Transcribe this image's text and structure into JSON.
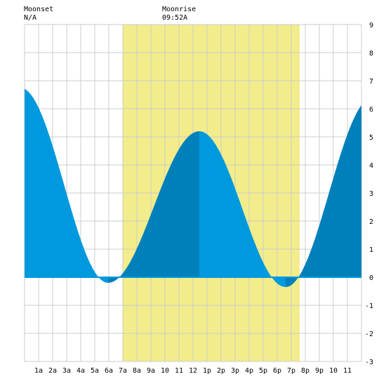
{
  "header": {
    "moonset_label": "Moonset",
    "moonset_time": "N/A",
    "moonrise_label": "Moonrise",
    "moonrise_time": "09:52A"
  },
  "chart_data": {
    "type": "area",
    "title": "",
    "xlabel": "",
    "ylabel": "",
    "x_unit": "hours",
    "xlim": [
      0,
      24
    ],
    "ylim": [
      -3,
      9
    ],
    "x_ticks": [
      {
        "x": 1,
        "label": "1a"
      },
      {
        "x": 2,
        "label": "2a"
      },
      {
        "x": 3,
        "label": "3a"
      },
      {
        "x": 4,
        "label": "4a"
      },
      {
        "x": 5,
        "label": "5a"
      },
      {
        "x": 6,
        "label": "6a"
      },
      {
        "x": 7,
        "label": "7a"
      },
      {
        "x": 8,
        "label": "8a"
      },
      {
        "x": 9,
        "label": "9a"
      },
      {
        "x": 10,
        "label": "10"
      },
      {
        "x": 11,
        "label": "11"
      },
      {
        "x": 12,
        "label": "12"
      },
      {
        "x": 13,
        "label": "1p"
      },
      {
        "x": 14,
        "label": "2p"
      },
      {
        "x": 15,
        "label": "3p"
      },
      {
        "x": 16,
        "label": "4p"
      },
      {
        "x": 17,
        "label": "5p"
      },
      {
        "x": 18,
        "label": "6p"
      },
      {
        "x": 19,
        "label": "7p"
      },
      {
        "x": 20,
        "label": "8p"
      },
      {
        "x": 21,
        "label": "9p"
      },
      {
        "x": 22,
        "label": "10"
      },
      {
        "x": 23,
        "label": "11"
      }
    ],
    "y_ticks": [
      {
        "y": 9,
        "label": "9"
      },
      {
        "y": 8,
        "label": "8"
      },
      {
        "y": 7,
        "label": "7"
      },
      {
        "y": 6,
        "label": "6"
      },
      {
        "y": 5,
        "label": "5"
      },
      {
        "y": 4,
        "label": "4"
      },
      {
        "y": 3,
        "label": "3"
      },
      {
        "y": 2,
        "label": "2"
      },
      {
        "y": 1,
        "label": "1"
      },
      {
        "y": 0,
        "label": "0"
      },
      {
        "y": -1,
        "label": "-1"
      },
      {
        "y": -2,
        "label": "-2"
      },
      {
        "y": -3,
        "label": "-3"
      }
    ],
    "grid": true,
    "daylight": {
      "start": 7.0,
      "end": 19.6
    },
    "tide_extremes": [
      {
        "x": -0.3,
        "y": 6.75
      },
      {
        "x": 5.95,
        "y": -0.2
      },
      {
        "x": 12.45,
        "y": 5.2
      },
      {
        "x": 18.6,
        "y": -0.35
      },
      {
        "x": 24.8,
        "y": 6.4
      }
    ],
    "colors": {
      "background": "#ffffff",
      "grid": "#cccccc",
      "daylight": "#f2ed8a",
      "falling_tide": "#0099dd",
      "rising_tide": "#0080bb",
      "zero_line": "#0099dd"
    }
  }
}
